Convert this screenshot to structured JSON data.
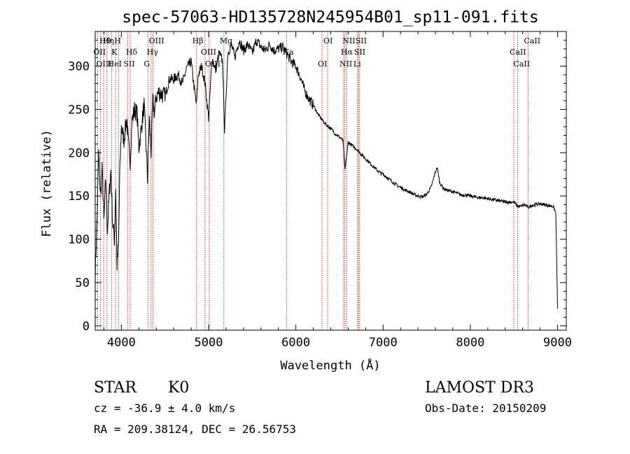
{
  "chart_data": {
    "type": "line",
    "title": "spec-57063-HD135728N245954B01_sp11-091.fits",
    "xlabel": "Wavelength (Å)",
    "ylabel": "Flux (relative)",
    "xlim": [
      3700,
      9100
    ],
    "ylim": [
      -5,
      340
    ],
    "xticks": [
      4000,
      5000,
      6000,
      7000,
      8000,
      9000
    ],
    "yticks": [
      0,
      50,
      100,
      150,
      200,
      250,
      300
    ],
    "grid": false,
    "series": [
      {
        "name": "flux",
        "x": [
          3700,
          3720,
          3740,
          3760,
          3780,
          3800,
          3820,
          3840,
          3860,
          3880,
          3900,
          3920,
          3935,
          3950,
          3968,
          3980,
          4000,
          4030,
          4060,
          4080,
          4101,
          4120,
          4150,
          4180,
          4200,
          4230,
          4260,
          4280,
          4300,
          4320,
          4340,
          4360,
          4380,
          4400,
          4430,
          4460,
          4500,
          4550,
          4600,
          4650,
          4700,
          4750,
          4800,
          4840,
          4861,
          4880,
          4920,
          4960,
          5000,
          5040,
          5080,
          5120,
          5160,
          5183,
          5220,
          5260,
          5300,
          5350,
          5400,
          5450,
          5500,
          5550,
          5600,
          5650,
          5700,
          5750,
          5800,
          5850,
          5893,
          5950,
          6000,
          6050,
          6100,
          6150,
          6200,
          6250,
          6300,
          6350,
          6400,
          6450,
          6500,
          6540,
          6563,
          6600,
          6650,
          6700,
          6750,
          6800,
          6850,
          6900,
          6950,
          7000,
          7050,
          7100,
          7150,
          7200,
          7250,
          7300,
          7350,
          7400,
          7450,
          7500,
          7550,
          7600,
          7620,
          7650,
          7700,
          7750,
          7800,
          7850,
          7900,
          7950,
          8000,
          8050,
          8100,
          8150,
          8200,
          8250,
          8300,
          8350,
          8400,
          8450,
          8498,
          8542,
          8580,
          8620,
          8662,
          8700,
          8750,
          8800,
          8850,
          8900,
          8950,
          8980,
          9000
        ],
        "y": [
          60,
          120,
          200,
          150,
          180,
          120,
          170,
          110,
          150,
          180,
          120,
          100,
          160,
          70,
          95,
          170,
          230,
          215,
          240,
          210,
          190,
          235,
          250,
          245,
          205,
          230,
          255,
          215,
          170,
          240,
          200,
          260,
          245,
          265,
          270,
          268,
          265,
          285,
          285,
          290,
          280,
          298,
          305,
          270,
          255,
          290,
          300,
          280,
          240,
          310,
          295,
          315,
          305,
          225,
          315,
          325,
          310,
          330,
          318,
          325,
          315,
          330,
          322,
          318,
          325,
          318,
          320,
          322,
          315,
          305,
          300,
          288,
          272,
          262,
          255,
          245,
          238,
          232,
          228,
          222,
          218,
          214,
          180,
          212,
          208,
          204,
          198,
          193,
          188,
          183,
          178,
          175,
          171,
          167,
          163,
          160,
          157,
          155,
          152,
          150,
          149,
          152,
          160,
          178,
          183,
          165,
          158,
          156,
          155,
          153,
          151,
          151,
          150,
          149,
          148,
          148,
          147,
          146,
          145,
          144,
          143,
          143,
          143,
          138,
          138,
          140,
          137,
          139,
          140,
          141,
          140,
          139,
          138,
          130,
          20
        ]
      }
    ],
    "lines": [
      {
        "name": "Hθ",
        "wave": 3797
      },
      {
        "name": "OII",
        "wave": 3727
      },
      {
        "name": "OIII",
        "wave": 3760
      },
      {
        "name": "Hη",
        "wave": 3835
      },
      {
        "name": "K",
        "wave": 3934
      },
      {
        "name": "HeI",
        "wave": 3889
      },
      {
        "name": "H",
        "wave": 3968
      },
      {
        "name": "Hδ",
        "wave": 4101
      },
      {
        "name": "SII",
        "wave": 4072
      },
      {
        "name": "OIII",
        "wave": 4363
      },
      {
        "name": "Hγ",
        "wave": 4340
      },
      {
        "name": "G",
        "wave": 4305
      },
      {
        "name": "Hβ",
        "wave": 4861
      },
      {
        "name": "OIII",
        "wave": 4959
      },
      {
        "name": "OIII",
        "wave": 5007
      },
      {
        "name": "Mg",
        "wave": 5175
      },
      {
        "name": "Na",
        "wave": 5893
      },
      {
        "name": "OI",
        "wave": 6300
      },
      {
        "name": "OI",
        "wave": 6364
      },
      {
        "name": "Hα",
        "wave": 6563
      },
      {
        "name": "NII",
        "wave": 6548
      },
      {
        "name": "NII",
        "wave": 6583
      },
      {
        "name": "SII",
        "wave": 6716
      },
      {
        "name": "Li",
        "wave": 6708
      },
      {
        "name": "SII",
        "wave": 6731
      },
      {
        "name": "CaII",
        "wave": 8498
      },
      {
        "name": "CaII",
        "wave": 8542
      },
      {
        "name": "CaII",
        "wave": 8662
      }
    ]
  },
  "info": {
    "class_label": "STAR",
    "subclass": "K0",
    "survey": "LAMOST DR3",
    "cz": "cz = -36.9 ± 4.0 km/s",
    "obs_date": "Obs-Date: 20150209",
    "coords": "RA = 209.38124, DEC =  26.56753"
  },
  "colors": {
    "line_marker": "#c0392b",
    "spectrum": "#000000"
  }
}
